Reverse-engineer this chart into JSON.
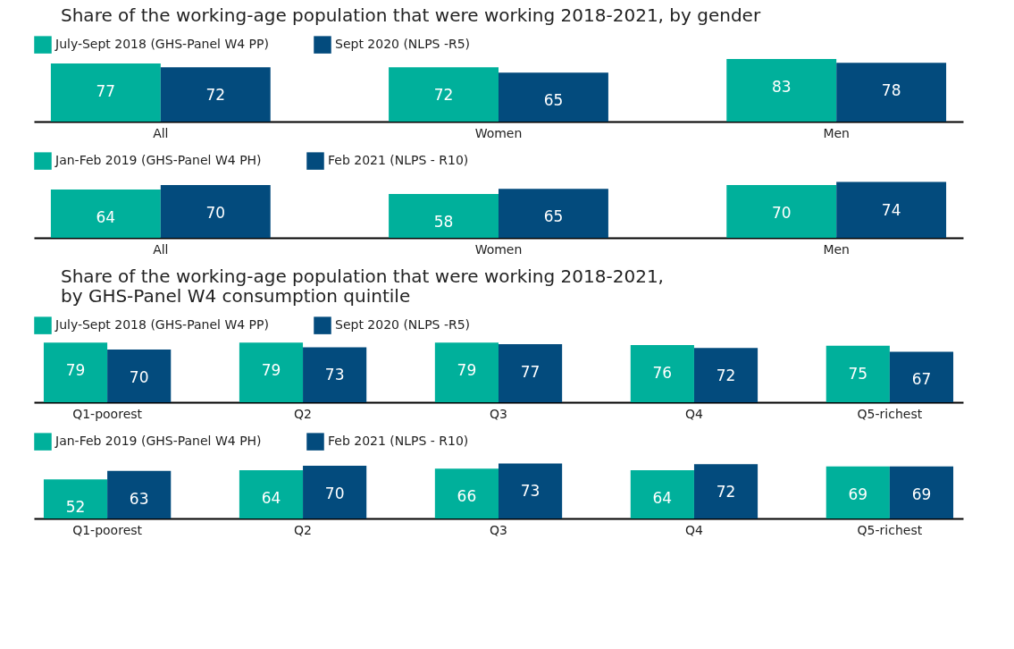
{
  "chart_data": [
    {
      "type": "bar",
      "title": "Share of the working-age population that were working 2018-2021, by gender",
      "categories": [
        "All",
        "Women",
        "Men"
      ],
      "data_labels": true,
      "legend": "top left",
      "grid": false,
      "series": [
        {
          "name": "July-Sept 2018 (GHS-Panel W4 PP)",
          "color": "#00b09b",
          "values": [
            77,
            72,
            83
          ]
        },
        {
          "name": "Sept 2020 (NLPS -R5)",
          "color": "#034b7d",
          "values": [
            72,
            65,
            78
          ]
        }
      ]
    },
    {
      "type": "bar",
      "categories": [
        "All",
        "Women",
        "Men"
      ],
      "data_labels": true,
      "legend": "top left",
      "grid": false,
      "series": [
        {
          "name": "Jan-Feb 2019 (GHS-Panel W4 PH)",
          "color": "#00b09b",
          "values": [
            64,
            58,
            70
          ]
        },
        {
          "name": "Feb 2021 (NLPS - R10)",
          "color": "#034b7d",
          "values": [
            70,
            65,
            74
          ]
        }
      ]
    },
    {
      "type": "bar",
      "title": "Share of the working-age population that were working 2018-2021,\nby GHS-Panel W4 consumption quintile",
      "categories": [
        "Q1-poorest",
        "Q2",
        "Q3",
        "Q4",
        "Q5-richest"
      ],
      "data_labels": true,
      "legend": "top left",
      "grid": false,
      "series": [
        {
          "name": "July-Sept 2018 (GHS-Panel W4 PP)",
          "color": "#00b09b",
          "values": [
            79,
            79,
            79,
            76,
            75
          ]
        },
        {
          "name": "Sept 2020 (NLPS -R5)",
          "color": "#034b7d",
          "values": [
            70,
            73,
            77,
            72,
            67
          ]
        }
      ]
    },
    {
      "type": "bar",
      "categories": [
        "Q1-poorest",
        "Q2",
        "Q3",
        "Q4",
        "Q5-richest"
      ],
      "data_labels": true,
      "legend": "top left",
      "grid": false,
      "series": [
        {
          "name": "Jan-Feb 2019 (GHS-Panel W4 PH)",
          "color": "#00b09b",
          "values": [
            52,
            64,
            66,
            64,
            69
          ]
        },
        {
          "name": "Feb 2021 (NLPS - R10)",
          "color": "#034b7d",
          "values": [
            63,
            70,
            73,
            72,
            69
          ]
        }
      ]
    }
  ]
}
